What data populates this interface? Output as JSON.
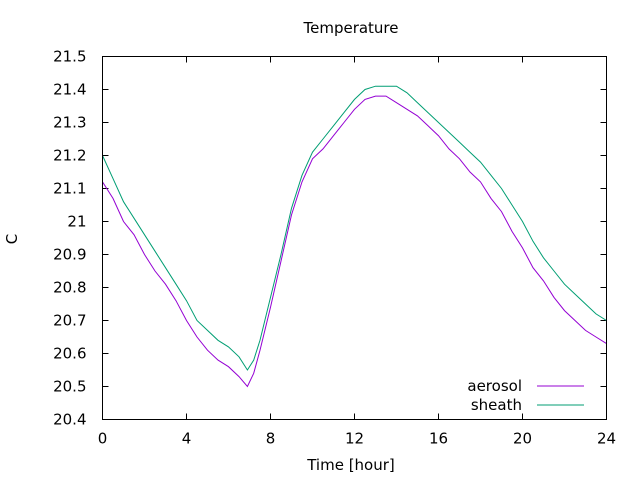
{
  "chart_data": {
    "type": "line",
    "title": "Temperature",
    "xlabel": "Time [hour]",
    "ylabel": "C",
    "xlim": [
      0,
      24
    ],
    "ylim": [
      20.4,
      21.5
    ],
    "xticks": [
      0,
      4,
      8,
      12,
      16,
      20,
      24
    ],
    "xtick_labels": [
      "0",
      "4",
      "8",
      "12",
      "16",
      "20",
      "24"
    ],
    "yticks": [
      20.4,
      20.5,
      20.6,
      20.7,
      20.8,
      20.9,
      21.0,
      21.1,
      21.2,
      21.3,
      21.4,
      21.5
    ],
    "ytick_labels": [
      "20.4",
      "20.5",
      "20.6",
      "20.7",
      "20.8",
      "20.9",
      "21",
      "21.1",
      "21.2",
      "21.3",
      "21.4",
      "21.5"
    ],
    "grid": false,
    "legend_position": "bottom-right",
    "series": [
      {
        "name": "aerosol",
        "color": "#9400d3",
        "x": [
          0,
          0.5,
          1,
          1.5,
          2,
          2.5,
          3,
          3.5,
          4,
          4.5,
          5,
          5.5,
          6,
          6.5,
          6.9,
          7.2,
          7.5,
          8,
          8.5,
          9,
          9.5,
          10,
          10.5,
          11,
          11.5,
          12,
          12.5,
          13,
          13.5,
          14,
          14.5,
          15,
          15.5,
          16,
          16.5,
          17,
          17.5,
          18,
          18.5,
          19,
          19.5,
          20,
          20.5,
          21,
          21.5,
          22,
          22.5,
          23,
          23.5,
          24
        ],
        "y": [
          21.12,
          21.07,
          21.0,
          20.96,
          20.9,
          20.85,
          20.81,
          20.76,
          20.7,
          20.65,
          20.61,
          20.58,
          20.56,
          20.53,
          20.5,
          20.54,
          20.61,
          20.74,
          20.88,
          21.02,
          21.12,
          21.19,
          21.22,
          21.26,
          21.3,
          21.34,
          21.37,
          21.38,
          21.38,
          21.36,
          21.34,
          21.32,
          21.29,
          21.26,
          21.22,
          21.19,
          21.15,
          21.12,
          21.07,
          21.03,
          20.97,
          20.92,
          20.86,
          20.82,
          20.77,
          20.73,
          20.7,
          20.67,
          20.65,
          20.63
        ]
      },
      {
        "name": "sheath",
        "color": "#009e73",
        "x": [
          0,
          0.5,
          1,
          1.5,
          2,
          2.5,
          3,
          3.5,
          4,
          4.5,
          5,
          5.5,
          6,
          6.5,
          6.9,
          7.2,
          7.5,
          8,
          8.5,
          9,
          9.5,
          10,
          10.5,
          11,
          11.5,
          12,
          12.5,
          13,
          13.5,
          14,
          14.5,
          15,
          15.5,
          16,
          16.5,
          17,
          17.5,
          18,
          18.5,
          19,
          19.5,
          20,
          20.5,
          21,
          21.5,
          22,
          22.5,
          23,
          23.5,
          24
        ],
        "y": [
          21.2,
          21.13,
          21.06,
          21.01,
          20.96,
          20.91,
          20.86,
          20.81,
          20.76,
          20.7,
          20.67,
          20.64,
          20.62,
          20.59,
          20.55,
          20.58,
          20.64,
          20.77,
          20.9,
          21.04,
          21.14,
          21.21,
          21.25,
          21.29,
          21.33,
          21.37,
          21.4,
          21.41,
          21.41,
          21.41,
          21.39,
          21.36,
          21.33,
          21.3,
          21.27,
          21.24,
          21.21,
          21.18,
          21.14,
          21.1,
          21.05,
          21.0,
          20.94,
          20.89,
          20.85,
          20.81,
          20.78,
          20.75,
          20.72,
          20.7
        ]
      }
    ]
  }
}
